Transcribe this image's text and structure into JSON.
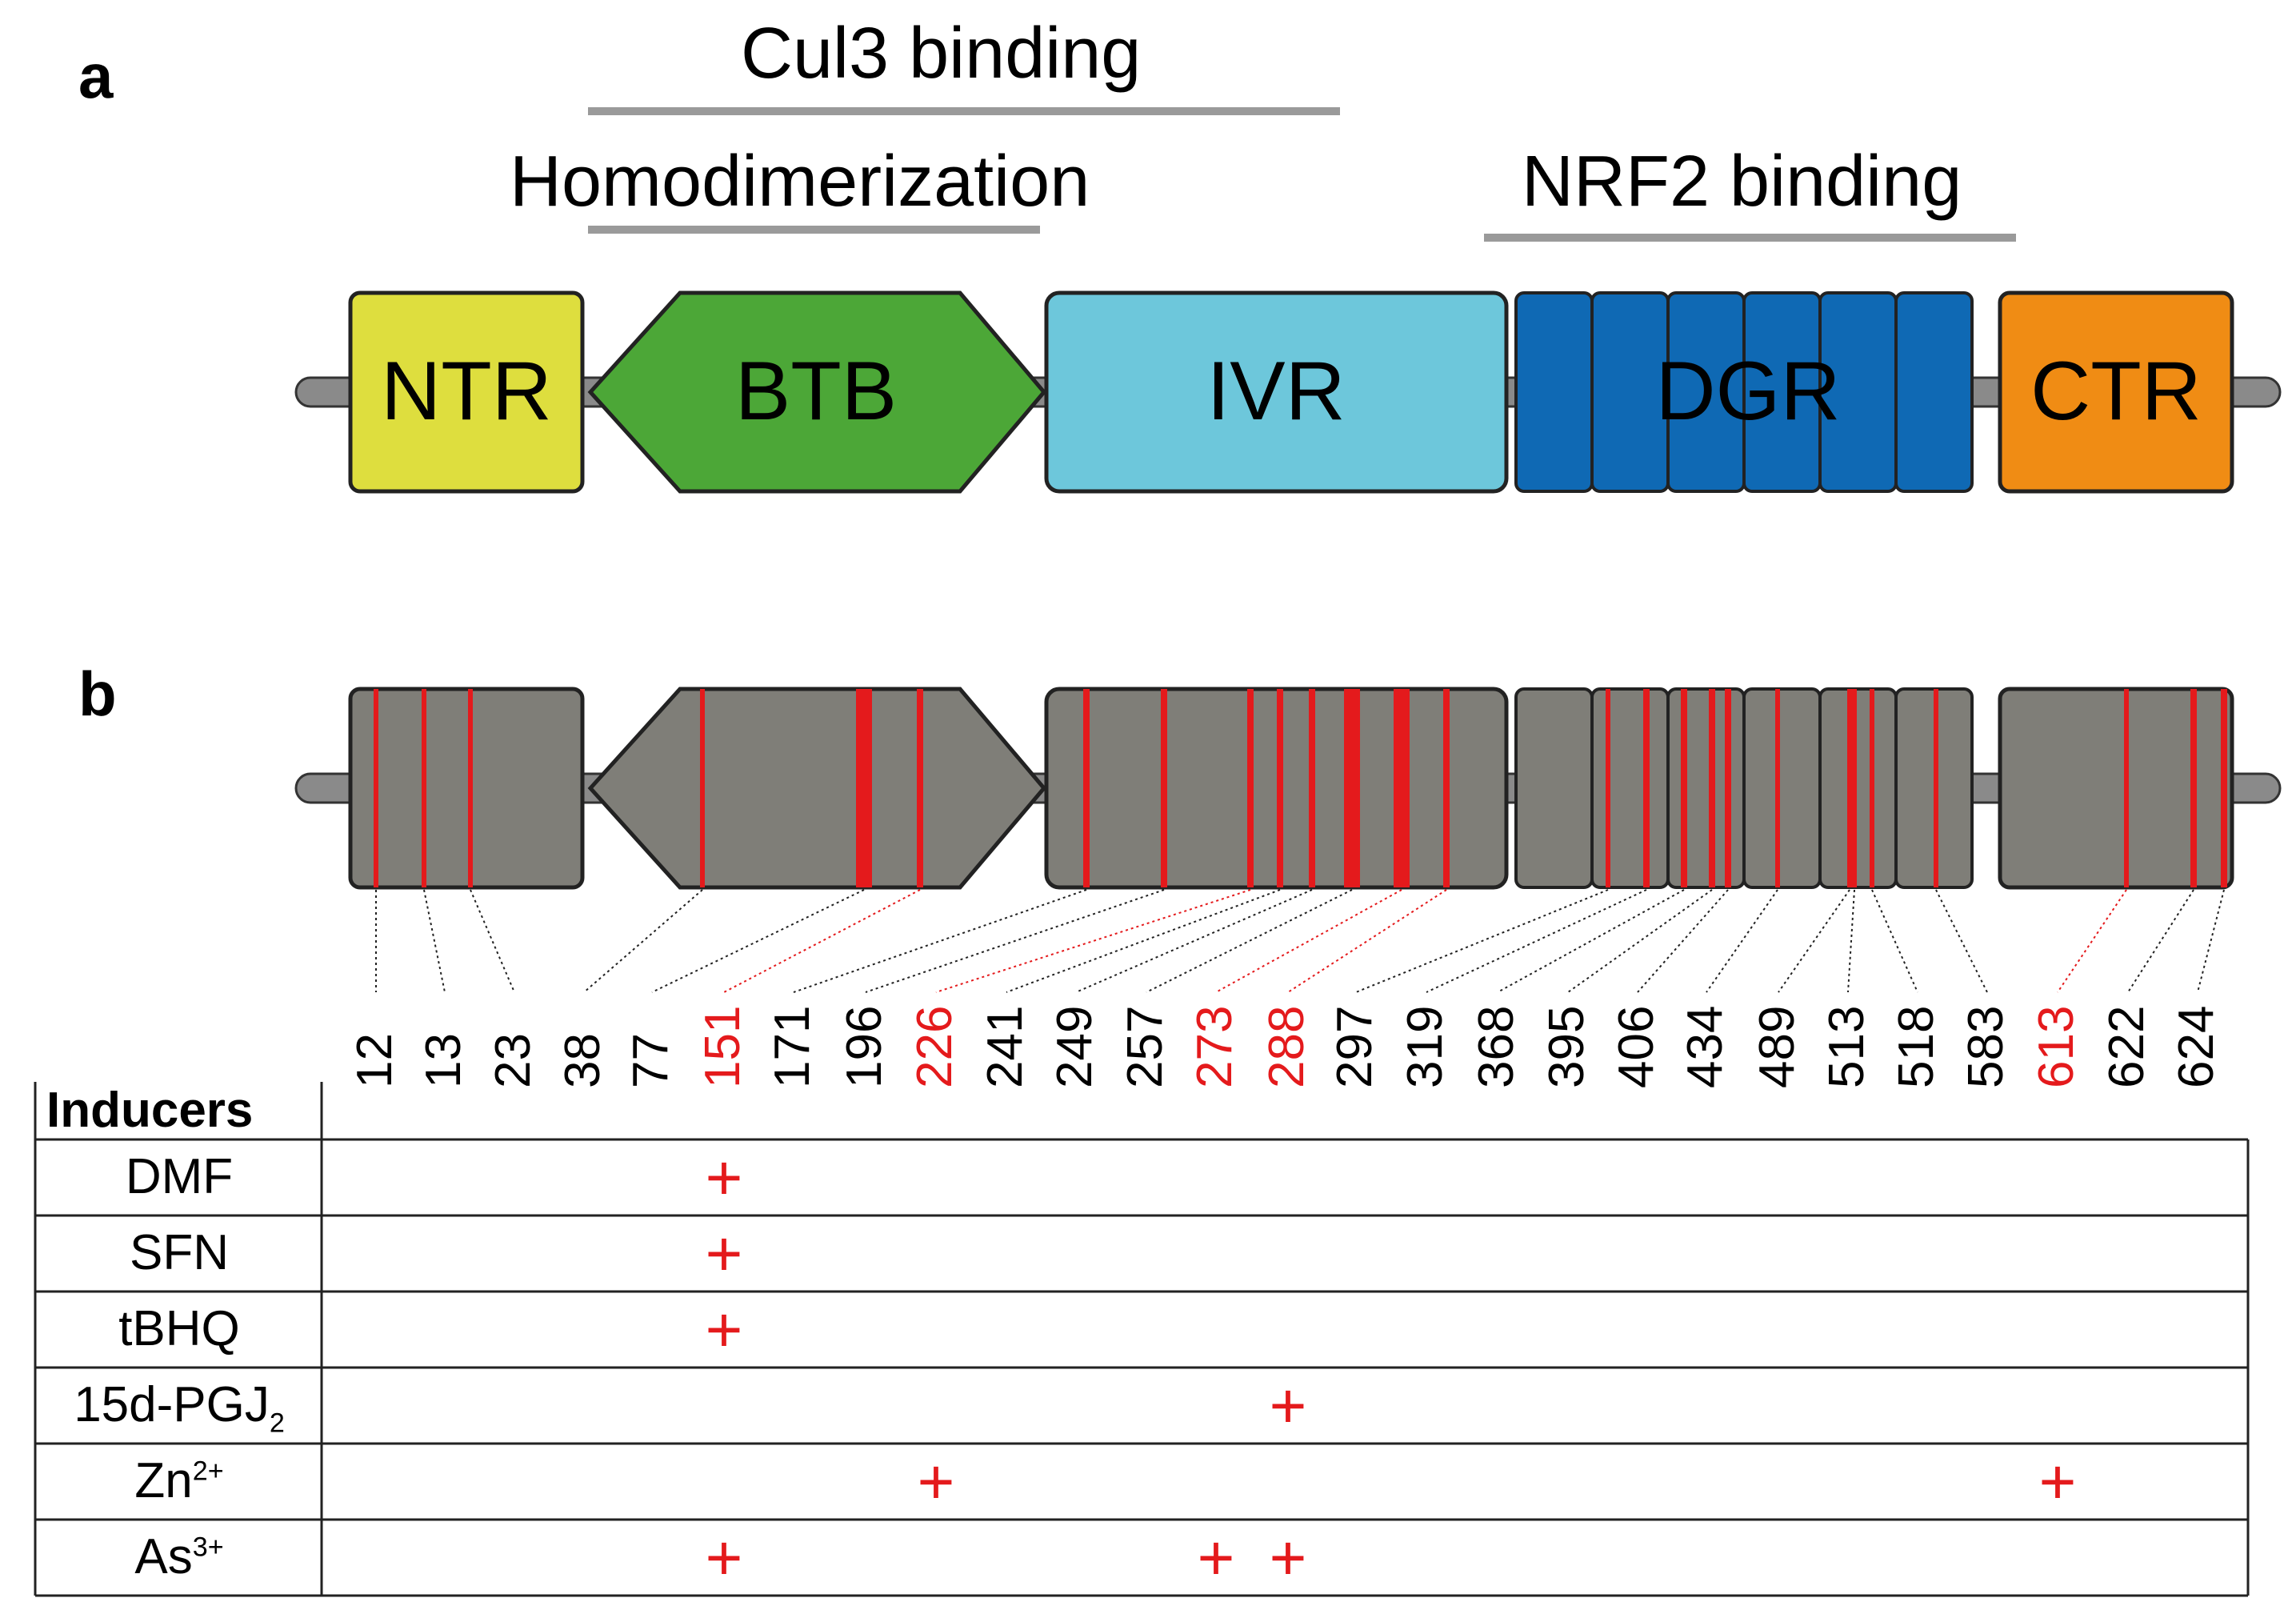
{
  "panel_a": {
    "label": "a",
    "regions": {
      "cul3": "Cul3 binding",
      "homodimerization": "Homodimerization",
      "nrf2": "NRF2 binding"
    },
    "domains": [
      {
        "name": "NTR",
        "color": "#dede3e"
      },
      {
        "name": "BTB",
        "color": "#4ca737"
      },
      {
        "name": "IVR",
        "color": "#6dc7db"
      },
      {
        "name": "DGR",
        "color": "#0f69b4"
      },
      {
        "name": "CTR",
        "color": "#f08c14"
      }
    ]
  },
  "panel_b": {
    "label": "b",
    "domain_fill": "#7f7e78",
    "mark_color": "#e41a1c",
    "residues": [
      {
        "value": "12",
        "highlight": false
      },
      {
        "value": "13",
        "highlight": false
      },
      {
        "value": "23",
        "highlight": false
      },
      {
        "value": "38",
        "highlight": false
      },
      {
        "value": "77",
        "highlight": false
      },
      {
        "value": "151",
        "highlight": true
      },
      {
        "value": "171",
        "highlight": false
      },
      {
        "value": "196",
        "highlight": false
      },
      {
        "value": "226",
        "highlight": true
      },
      {
        "value": "241",
        "highlight": false
      },
      {
        "value": "249",
        "highlight": false
      },
      {
        "value": "257",
        "highlight": false
      },
      {
        "value": "273",
        "highlight": true
      },
      {
        "value": "288",
        "highlight": true
      },
      {
        "value": "297",
        "highlight": false
      },
      {
        "value": "319",
        "highlight": false
      },
      {
        "value": "368",
        "highlight": false
      },
      {
        "value": "395",
        "highlight": false
      },
      {
        "value": "406",
        "highlight": false
      },
      {
        "value": "434",
        "highlight": false
      },
      {
        "value": "489",
        "highlight": false
      },
      {
        "value": "513",
        "highlight": false
      },
      {
        "value": "518",
        "highlight": false
      },
      {
        "value": "583",
        "highlight": false
      },
      {
        "value": "613",
        "highlight": true
      },
      {
        "value": "622",
        "highlight": false
      },
      {
        "value": "624",
        "highlight": false
      }
    ],
    "table": {
      "header": "Inducers",
      "plus_symbol": "+",
      "rows": [
        {
          "name": "DMF",
          "base": "DMF",
          "sub": "",
          "sup": "",
          "sites": [
            "151"
          ]
        },
        {
          "name": "SFN",
          "base": "SFN",
          "sub": "",
          "sup": "",
          "sites": [
            "151"
          ]
        },
        {
          "name": "tBHQ",
          "base": "tBHQ",
          "sub": "",
          "sup": "",
          "sites": [
            "151"
          ]
        },
        {
          "name": "15d-PGJ2",
          "base": "15d-PGJ",
          "sub": "2",
          "sup": "",
          "sites": [
            "288"
          ]
        },
        {
          "name": "Zn2+",
          "base": "Zn",
          "sub": "",
          "sup": "2+",
          "sites": [
            "226",
            "613"
          ]
        },
        {
          "name": "As3+",
          "base": "As",
          "sub": "",
          "sup": "3+",
          "sites": [
            "151",
            "273",
            "288"
          ]
        }
      ]
    }
  }
}
